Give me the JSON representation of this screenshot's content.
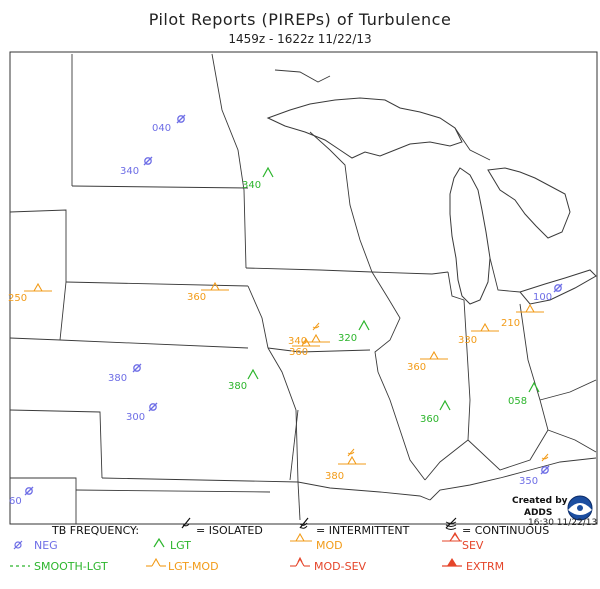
{
  "title": "Pilot Reports (PIREPs) of Turbulence",
  "subtitle": "1459z - 1622z 11/22/13",
  "colors": {
    "neg": "#6e6ee6",
    "lgt": "#2cb52c",
    "mod": "#f29b18",
    "sev": "#e5452a",
    "extrm": "#e5452a",
    "border": "#3a3a3a"
  },
  "reports": [
    {
      "alt": "040",
      "type": "neg"
    },
    {
      "alt": "340",
      "type": "neg"
    },
    {
      "alt": "340",
      "type": "lgt"
    },
    {
      "alt": "250",
      "type": "mod"
    },
    {
      "alt": "360",
      "type": "mod"
    },
    {
      "alt": "340",
      "type": "mod"
    },
    {
      "alt": "360",
      "type": "mod"
    },
    {
      "alt": "320",
      "type": "lgt"
    },
    {
      "alt": "330",
      "type": "mod"
    },
    {
      "alt": "210",
      "type": "mod"
    },
    {
      "alt": "100",
      "type": "neg"
    },
    {
      "alt": "360",
      "type": "mod"
    },
    {
      "alt": "380",
      "type": "neg"
    },
    {
      "alt": "380",
      "type": "lgt"
    },
    {
      "alt": "300",
      "type": "neg"
    },
    {
      "alt": "360",
      "type": "lgt"
    },
    {
      "alt": "058",
      "type": "lgt"
    },
    {
      "alt": "380",
      "type": "mod"
    },
    {
      "alt": "350",
      "type": "neg"
    },
    {
      "alt": "60",
      "type": "neg"
    }
  ],
  "legend": {
    "tb_frequency": "TB FREQUENCY:",
    "isolated": "= ISOLATED",
    "intermittent": "= INTERMITTENT",
    "continuous": "= CONTINUOUS",
    "neg": "NEG",
    "lgt": "LGT",
    "mod": "MOD",
    "sev": "SEV",
    "smooth_lgt": "SMOOTH-LGT",
    "lgt_mod": "LGT-MOD",
    "mod_sev": "MOD-SEV",
    "extrm": "EXTRM"
  },
  "credit": {
    "created_by": "Created by",
    "adds": "ADDS",
    "timestamp": "16:30 11/22/13"
  }
}
